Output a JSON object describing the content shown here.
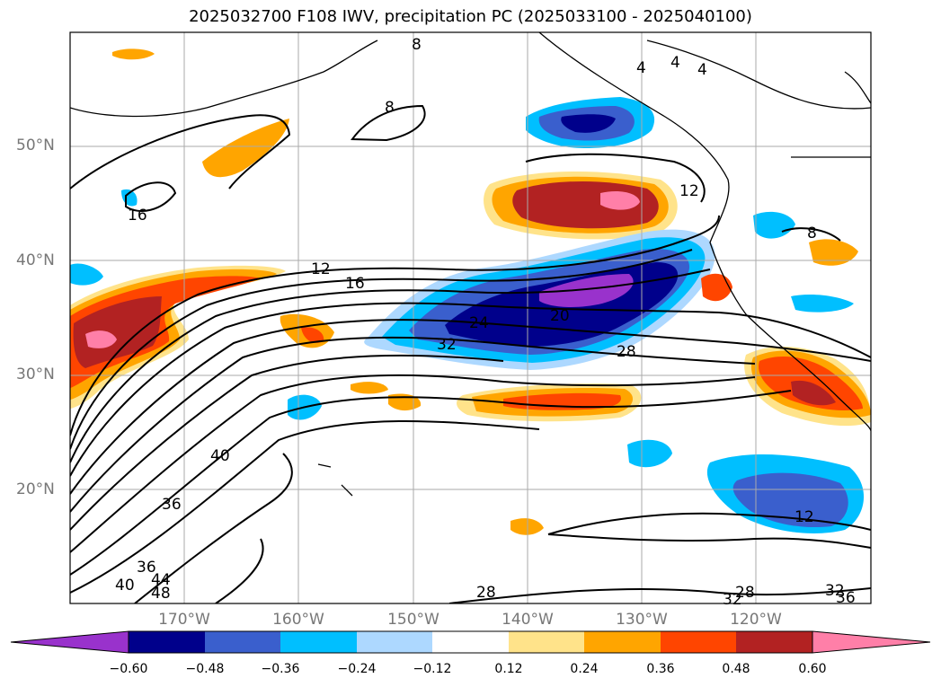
{
  "title": "2025032700 F108 IWV, precipitation PC (2025033100 - 2025040100)",
  "lat_labels": [
    "50°N",
    "40°N",
    "30°N",
    "20°N"
  ],
  "lon_labels": [
    "170°W",
    "160°W",
    "150°W",
    "140°W",
    "130°W",
    "120°W"
  ],
  "colorbar": {
    "ticks": [
      "−0.60",
      "−0.48",
      "−0.36",
      "−0.24",
      "−0.12",
      "0.12",
      "0.24",
      "0.36",
      "0.48",
      "0.60"
    ],
    "colors": [
      "#9932cc",
      "#00008b",
      "#3a5fcd",
      "#00bfff",
      "#add8ff",
      "#ffffff",
      "#ffe38a",
      "#ffa500",
      "#ff4500",
      "#b22222",
      "#ff7fa8"
    ]
  },
  "contour_labels": [
    "8",
    "8",
    "16",
    "12",
    "16",
    "20",
    "24",
    "28",
    "32",
    "12",
    "4",
    "4",
    "4",
    "8",
    "40",
    "36",
    "36",
    "44",
    "40",
    "48",
    "28",
    "28",
    "32",
    "32",
    "36",
    "12"
  ]
}
